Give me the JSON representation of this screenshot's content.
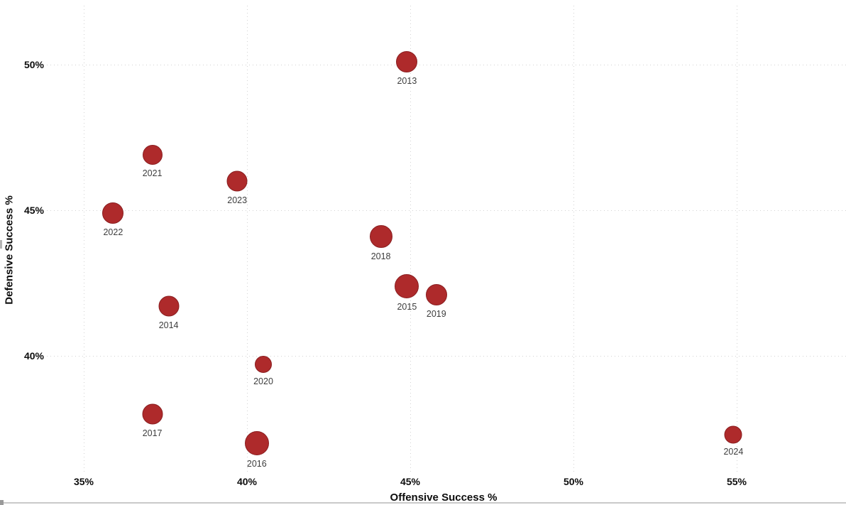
{
  "chart_data": {
    "type": "scatter",
    "title": "",
    "xlabel": "Offensive Success %",
    "ylabel": "Defensive Success %",
    "x_ticks": [
      {
        "value": 35,
        "label": "35%"
      },
      {
        "value": 40,
        "label": "40%"
      },
      {
        "value": 45,
        "label": "45%"
      },
      {
        "value": 50,
        "label": "50%"
      },
      {
        "value": 55,
        "label": "55%"
      }
    ],
    "y_ticks": [
      {
        "value": 50,
        "label": "50%"
      },
      {
        "value": 45,
        "label": "45%"
      },
      {
        "value": 40,
        "label": "40%"
      }
    ],
    "xlim": [
      32.4,
      58.3
    ],
    "ylim": [
      36.0,
      52.2
    ],
    "grid": "dotted",
    "legend": "none",
    "point_color": "#AE2A2B",
    "point_border_color": "#8A1E20",
    "points": [
      {
        "label": "2013",
        "x": 44.9,
        "y": 50.1,
        "r": 15
      },
      {
        "label": "2014",
        "x": 37.6,
        "y": 41.7,
        "r": 14.5
      },
      {
        "label": "2015",
        "x": 44.9,
        "y": 42.4,
        "r": 17
      },
      {
        "label": "2016",
        "x": 40.3,
        "y": 37.0,
        "r": 17
      },
      {
        "label": "2017",
        "x": 37.1,
        "y": 38.0,
        "r": 14.5
      },
      {
        "label": "2018",
        "x": 44.1,
        "y": 44.1,
        "r": 16
      },
      {
        "label": "2019",
        "x": 45.8,
        "y": 42.1,
        "r": 15
      },
      {
        "label": "2020",
        "x": 40.5,
        "y": 39.7,
        "r": 12
      },
      {
        "label": "2021",
        "x": 37.1,
        "y": 46.9,
        "r": 14
      },
      {
        "label": "2022",
        "x": 35.9,
        "y": 44.9,
        "r": 15
      },
      {
        "label": "2023",
        "x": 39.7,
        "y": 46.0,
        "r": 14.5
      },
      {
        "label": "2024",
        "x": 54.9,
        "y": 37.3,
        "r": 12.5
      }
    ]
  }
}
